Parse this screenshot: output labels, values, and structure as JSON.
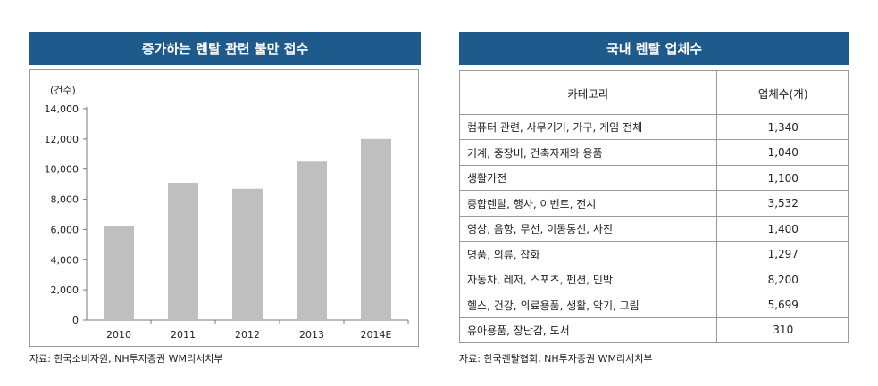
{
  "left_panel": {
    "title": "증가하는 렌탈 관련 불만 접수",
    "source": "자료: 한국소비자원, NH투자증권 WM리서치부"
  },
  "right_panel": {
    "title": "국내 렌탈 업체수",
    "source": "자료: 한국렌탈협회, NH투자증권 WM리서치부",
    "columns": [
      "카테고리",
      "업체수(개)"
    ],
    "rows": [
      {
        "category": "컴퓨터 관련, 사무기기, 가구, 게임 전체",
        "count": "1,340"
      },
      {
        "category": "기계, 중장비, 건축자재와 용품",
        "count": "1,040"
      },
      {
        "category": "생활가전",
        "count": "1,100"
      },
      {
        "category": "종합렌탈, 행사, 이벤트, 전시",
        "count": "3,532"
      },
      {
        "category": "영상, 음향, 무선, 이동통신, 사진",
        "count": "1,400"
      },
      {
        "category": "명품, 의류, 잡화",
        "count": "1,297"
      },
      {
        "category": "자동차, 레저, 스포츠, 펜션, 민박",
        "count": "8,200"
      },
      {
        "category": "헬스, 건강, 의료용품, 생활, 악기, 그림",
        "count": "5,699"
      },
      {
        "category": "유아용품, 장난감, 도서",
        "count": "310"
      }
    ]
  },
  "chart_data": {
    "type": "bar",
    "title": "증가하는 렌탈 관련 불만 접수",
    "unit_label": "(건수)",
    "categories": [
      "2010",
      "2011",
      "2012",
      "2013",
      "2014E"
    ],
    "values": [
      6200,
      9100,
      8700,
      10500,
      12000
    ],
    "yticks": [
      "0",
      "2,000",
      "4,000",
      "6,000",
      "8,000",
      "10,000",
      "12,000",
      "14,000"
    ],
    "ylim": [
      0,
      14000
    ],
    "grid": false,
    "legend": "none",
    "bar_color": "#bfbfbf"
  }
}
